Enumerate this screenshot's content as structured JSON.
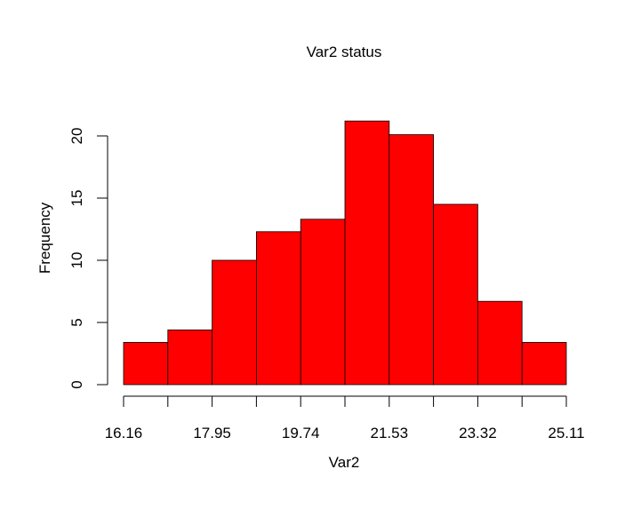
{
  "chart_data": {
    "type": "bar",
    "title": "Var2 status",
    "xlabel": "Var2",
    "ylabel": "Frequency",
    "bins": [
      {
        "start": 16.16,
        "end": 17.055,
        "value": 3.4
      },
      {
        "start": 17.055,
        "end": 17.95,
        "value": 4.4
      },
      {
        "start": 17.95,
        "end": 18.845,
        "value": 10
      },
      {
        "start": 18.845,
        "end": 19.74,
        "value": 12.3
      },
      {
        "start": 19.74,
        "end": 20.635,
        "value": 13.3
      },
      {
        "start": 20.635,
        "end": 21.53,
        "value": 21.2
      },
      {
        "start": 21.53,
        "end": 22.425,
        "value": 20.1
      },
      {
        "start": 22.425,
        "end": 23.32,
        "value": 14.5
      },
      {
        "start": 23.32,
        "end": 24.215,
        "value": 6.7
      },
      {
        "start": 24.215,
        "end": 25.11,
        "value": 3.4
      }
    ],
    "x_ticks": [
      16.16,
      17.055,
      17.95,
      18.845,
      19.74,
      20.635,
      21.53,
      22.425,
      23.32,
      24.215,
      25.11
    ],
    "x_tick_labels": [
      "16.16",
      "17.95",
      "19.74",
      "21.53",
      "23.32",
      "25.11"
    ],
    "y_ticks": [
      0,
      5,
      10,
      15,
      20
    ],
    "y_tick_labels": [
      "0",
      "5",
      "10",
      "15",
      "20"
    ],
    "xlim": [
      16.16,
      25.11
    ],
    "ylim": [
      0,
      22
    ],
    "grid": false,
    "colors": {
      "bar_fill": "#ff0000",
      "bar_stroke": "#000000"
    }
  }
}
